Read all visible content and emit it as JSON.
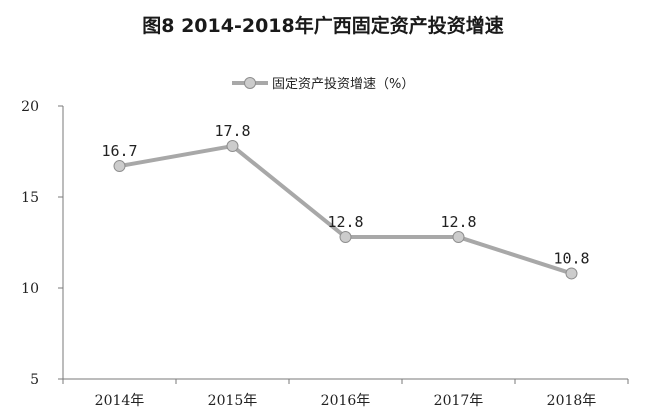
{
  "chart_data": {
    "type": "line",
    "title": "图8  2014-2018年广西固定资产投资增速",
    "categories": [
      "2014年",
      "2015年",
      "2016年",
      "2017年",
      "2018年"
    ],
    "series": [
      {
        "name": "固定资产投资增速（%）",
        "values": [
          16.7,
          17.8,
          12.8,
          12.8,
          10.8
        ],
        "data_labels": [
          "16.7",
          "17.8",
          "12.8",
          "12.8",
          "10.8"
        ]
      }
    ],
    "xlabel": "",
    "ylabel": "",
    "ylim": [
      5,
      20
    ],
    "yticks": [
      5,
      10,
      15,
      20
    ],
    "ytick_labels": [
      "5",
      "10",
      "15",
      "20"
    ],
    "grid": false,
    "legend_position": "top-center",
    "colors": {
      "line": "#a8a8a8",
      "marker_fill": "#cccccc",
      "marker_stroke": "#8e8e8e",
      "axis": "#7a7a7a"
    }
  }
}
